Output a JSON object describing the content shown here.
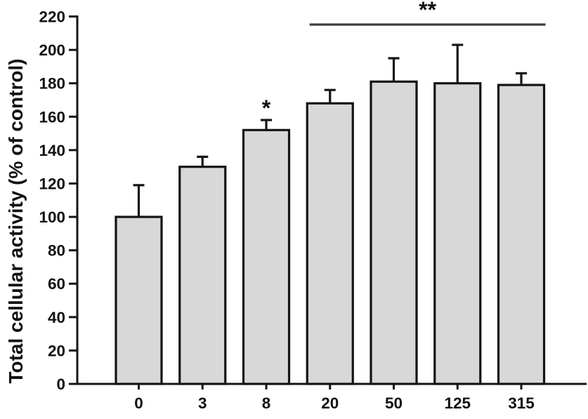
{
  "figure": {
    "background": "#ffffff"
  },
  "chart_data": {
    "type": "bar",
    "ylabel": "Total cellular activity (% of control)",
    "categories": [
      "0",
      "3",
      "8",
      "20",
      "50",
      "125",
      "315"
    ],
    "values": [
      100,
      130,
      152,
      168,
      181,
      180,
      179
    ],
    "errors": [
      19,
      6,
      6,
      8,
      14,
      23,
      7
    ],
    "ylim": [
      0,
      220
    ],
    "ytick_step": 20,
    "ytick_labels": [
      "0",
      "20",
      "40",
      "60",
      "80",
      "100",
      "120",
      "140",
      "160",
      "180",
      "200",
      "220"
    ],
    "grid": false,
    "legend": null,
    "bar_fill": "#d8d8d8",
    "bar_stroke": "#141414",
    "axis_color": "#141414",
    "error_bar_color": "#141414",
    "sig_line_color": "#3d3d3d",
    "annotations": [
      {
        "symbol": "*",
        "kind": "single",
        "category_index": 2
      },
      {
        "symbol": "**",
        "kind": "range",
        "from_index": 3,
        "to_index": 6
      }
    ]
  }
}
